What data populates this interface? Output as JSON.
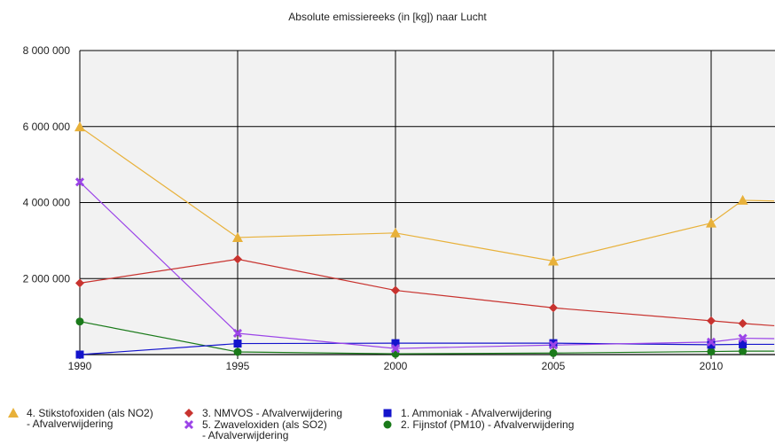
{
  "chart_data": {
    "type": "line",
    "title": "Absolute emissiereeks (in [kg]) naar Lucht",
    "xlabel": "",
    "ylabel": "",
    "ylim": [
      0,
      8000000
    ],
    "xlim": [
      1990,
      2012
    ],
    "y_ticks": [
      {
        "value": 2000000,
        "label": "2 000 000"
      },
      {
        "value": 4000000,
        "label": "4 000 000"
      },
      {
        "value": 6000000,
        "label": "6 000 000"
      },
      {
        "value": 8000000,
        "label": "8 000 000"
      }
    ],
    "x_ticks": [
      {
        "value": 1990,
        "label": "1990"
      },
      {
        "value": 1995,
        "label": "1995"
      },
      {
        "value": 2000,
        "label": "2000"
      },
      {
        "value": 2005,
        "label": "2005"
      },
      {
        "value": 2010,
        "label": "2010"
      }
    ],
    "grid": true,
    "legend_position": "bottom",
    "series": [
      {
        "name": "4. Stikstofoxiden (als NO2) - Afvalverwijdering",
        "color": "#e8b13a",
        "marker": "triangle",
        "x": [
          1990,
          1995,
          2000,
          2005,
          2010,
          2011,
          2012
        ],
        "values": [
          5990000,
          3080000,
          3200000,
          2460000,
          3460000,
          4060000,
          4040000
        ]
      },
      {
        "name": "3. NMVOS - Afvalverwijdering",
        "color": "#c8332f",
        "marker": "diamond",
        "x": [
          1990,
          1995,
          2000,
          2005,
          2010,
          2011,
          2012
        ],
        "values": [
          1880000,
          2510000,
          1690000,
          1230000,
          890000,
          820000,
          760000
        ]
      },
      {
        "name": "5. Zwaveloxiden (als SO2) - Afvalverwijdering",
        "color": "#9b44e8",
        "marker": "cross",
        "x": [
          1990,
          1995,
          2000,
          2005,
          2010,
          2011,
          2012
        ],
        "values": [
          4540000,
          560000,
          160000,
          250000,
          330000,
          430000,
          420000
        ]
      },
      {
        "name": "1. Ammoniak - Afvalverwijdering",
        "color": "#1414cc",
        "marker": "square",
        "x": [
          1990,
          1995,
          2000,
          2005,
          2010,
          2011,
          2012
        ],
        "values": [
          0,
          290000,
          300000,
          300000,
          260000,
          270000,
          270000
        ]
      },
      {
        "name": "2. Fijnstof (PM10) - Afvalverwijdering",
        "color": "#1a7a1a",
        "marker": "circle",
        "x": [
          1990,
          1995,
          2000,
          2005,
          2010,
          2011,
          2012
        ],
        "values": [
          870000,
          70000,
          20000,
          40000,
          80000,
          90000,
          90000
        ]
      }
    ]
  },
  "legend": [
    {
      "label": "4. Stikstofoxiden (als NO2)\n- Afvalverwijdering",
      "color": "#e8b13a",
      "marker": "triangle"
    },
    {
      "label": "3. NMVOS - Afvalverwijdering",
      "color": "#c8332f",
      "marker": "diamond"
    },
    {
      "label": "5. Zwaveloxiden (als SO2)\n- Afvalverwijdering",
      "color": "#9b44e8",
      "marker": "cross"
    },
    {
      "label": "1. Ammoniak - Afvalverwijdering",
      "color": "#1414cc",
      "marker": "square"
    },
    {
      "label": "2. Fijnstof (PM10) - Afvalverwijdering",
      "color": "#1a7a1a",
      "marker": "circle"
    }
  ]
}
